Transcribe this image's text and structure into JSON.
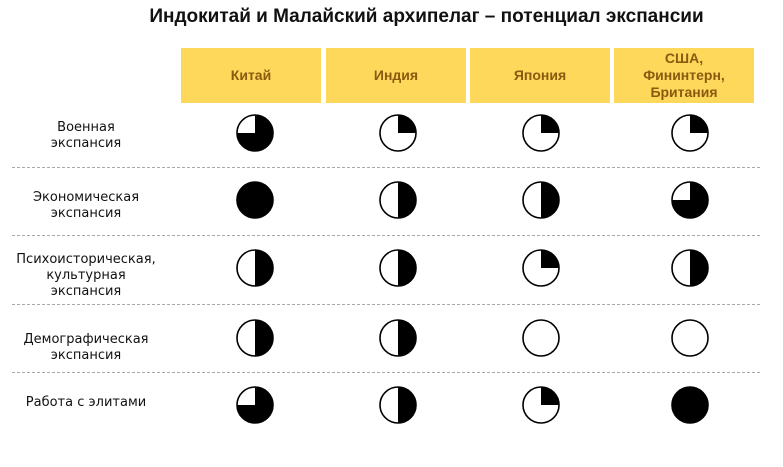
{
  "chart_data": {
    "type": "table",
    "title": "Индокитай и Малайский архипелаг – потенциал экспансии",
    "columns": [
      "Китай",
      "Индия",
      "Япония",
      "США,\nФининтерн,\nБритания"
    ],
    "rows": [
      {
        "label": "Военная\nэкспансия",
        "values": [
          0.75,
          0.25,
          0.25,
          0.25
        ]
      },
      {
        "label": "Экономическая\nэкспансия",
        "values": [
          1.0,
          0.5,
          0.5,
          0.75
        ]
      },
      {
        "label": "Психоисторическая,\nкультурная\nэкспансия",
        "values": [
          0.5,
          0.5,
          0.25,
          0.5
        ]
      },
      {
        "label": "Демографическая\nэкспансия",
        "values": [
          0.5,
          0.5,
          0.0,
          0.0
        ]
      },
      {
        "label": "Работа с элитами",
        "values": [
          0.75,
          0.5,
          0.25,
          1.0
        ]
      }
    ],
    "value_encoding": "filled fraction of Harvey ball (0–1)"
  },
  "colors": {
    "header_bg": "#fdd85a",
    "header_text": "#8a5a10",
    "ball_fill": "#000000",
    "divider": "#a8a8a8"
  }
}
